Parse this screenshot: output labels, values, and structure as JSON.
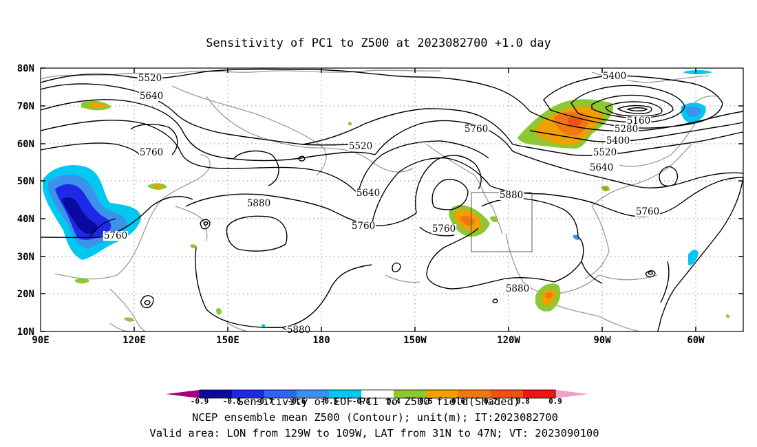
{
  "title": "Sensitivity of PC1 to Z500 at 2023082700 +1.0 day",
  "lat_ticks": [
    "80N",
    "70N",
    "60N",
    "50N",
    "40N",
    "30N",
    "20N",
    "10N"
  ],
  "lon_ticks": [
    "90E",
    "120E",
    "150E",
    "180",
    "150W",
    "120W",
    "90W",
    "60W"
  ],
  "contour_labels": [
    {
      "text": "5520",
      "name": "contour-label-5520-northwest"
    },
    {
      "text": "5640",
      "name": "contour-label-5640-northwest"
    },
    {
      "text": "5760",
      "name": "contour-label-5760-siberia"
    },
    {
      "text": "5760",
      "name": "contour-label-5760-east-asia"
    },
    {
      "text": "5880",
      "name": "contour-label-5880-pacific"
    },
    {
      "text": "5640",
      "name": "contour-label-5640-pacific"
    },
    {
      "text": "5520",
      "name": "contour-label-5520-pacific"
    },
    {
      "text": "5760",
      "name": "contour-label-5760-pacific"
    },
    {
      "text": "5760",
      "name": "contour-label-5760-alaska"
    },
    {
      "text": "5760",
      "name": "contour-label-5760-cutoff-low"
    },
    {
      "text": "5880",
      "name": "contour-label-5880-us-west"
    },
    {
      "text": "5880",
      "name": "contour-label-5880-mexico"
    },
    {
      "text": "5880",
      "name": "contour-label-5880-tropics"
    },
    {
      "text": "5400",
      "name": "contour-label-5400-arctic"
    },
    {
      "text": "5160",
      "name": "contour-label-5160"
    },
    {
      "text": "5280",
      "name": "contour-label-5280"
    },
    {
      "text": "5400",
      "name": "contour-label-5400-canada"
    },
    {
      "text": "5520",
      "name": "contour-label-5520-canada"
    },
    {
      "text": "5640",
      "name": "contour-label-5640-canada"
    },
    {
      "text": "5760",
      "name": "contour-label-5760-atlantic"
    }
  ],
  "valid_box": {
    "lon_from": "129W",
    "lon_to": "109W",
    "lat_from": "31N",
    "lat_to": "47N"
  },
  "colorbar": {
    "labels": [
      "-0.9",
      "-0.8",
      "-0.7",
      "-0.6",
      "-0.5",
      "-0.4",
      "0.4",
      "0.5",
      "0.6",
      "0.7",
      "0.8",
      "0.9"
    ],
    "colors": [
      "#a0007a",
      "#0a0aa0",
      "#1e28e6",
      "#2d64f0",
      "#3c91eb",
      "#00c8f0",
      "#ffffff",
      "#8cc832",
      "#f0a000",
      "#f07814",
      "#f05014",
      "#f01414",
      "#f0a0c8"
    ]
  },
  "captions": [
    "Sensitivity of EOF PC1 to Z500 field(Shaded)",
    "NCEP ensemble mean Z500 (Contour); unit(m); IT:2023082700",
    "Valid area: LON from 129W to 109W, LAT from 31N to 47N; VT: 2023090100"
  ]
}
